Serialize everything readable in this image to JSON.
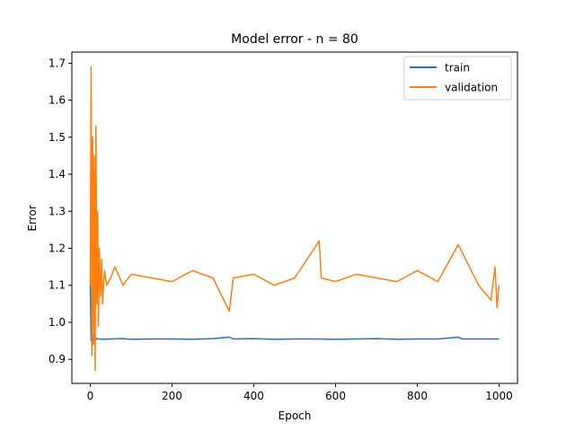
{
  "chart_data": {
    "type": "line",
    "title": "Model error - n = 80",
    "xlabel": "Epoch",
    "ylabel": "Error",
    "xlim": [
      -45,
      1045
    ],
    "ylim": [
      0.835,
      1.73
    ],
    "xticks": [
      0,
      200,
      400,
      600,
      800,
      1000
    ],
    "yticks": [
      0.9,
      1.0,
      1.1,
      1.2,
      1.3,
      1.4,
      1.5,
      1.6,
      1.7
    ],
    "ytick_labels": [
      "0.9",
      "1.0",
      "1.1",
      "1.2",
      "1.3",
      "1.4",
      "1.5",
      "1.6",
      "1.7"
    ],
    "grid": false,
    "legend_position": "top-right",
    "series": [
      {
        "name": "train",
        "color": "#1f77b4",
        "x": [
          0,
          2,
          4,
          6,
          8,
          10,
          12,
          15,
          20,
          30,
          50,
          80,
          100,
          150,
          200,
          250,
          300,
          340,
          350,
          400,
          450,
          500,
          550,
          600,
          650,
          700,
          750,
          800,
          850,
          900,
          910,
          950,
          1000
        ],
        "y": [
          1.1,
          0.95,
          0.96,
          0.94,
          0.97,
          0.955,
          0.95,
          0.956,
          0.955,
          0.954,
          0.955,
          0.956,
          0.954,
          0.955,
          0.955,
          0.954,
          0.956,
          0.96,
          0.955,
          0.956,
          0.954,
          0.955,
          0.955,
          0.954,
          0.955,
          0.956,
          0.954,
          0.955,
          0.955,
          0.96,
          0.955,
          0.955,
          0.955
        ]
      },
      {
        "name": "validation",
        "color": "#ff7f0e",
        "x": [
          0,
          2,
          4,
          6,
          8,
          10,
          12,
          14,
          16,
          18,
          20,
          22,
          25,
          28,
          30,
          35,
          40,
          50,
          60,
          80,
          100,
          150,
          200,
          250,
          300,
          340,
          350,
          400,
          450,
          500,
          560,
          565,
          600,
          650,
          700,
          750,
          800,
          850,
          900,
          950,
          980,
          990,
          995,
          1000
        ],
        "y": [
          1.1,
          1.69,
          0.91,
          1.5,
          0.94,
          1.45,
          0.87,
          1.53,
          1.05,
          1.3,
          0.99,
          1.2,
          1.07,
          1.17,
          1.05,
          1.14,
          1.1,
          1.12,
          1.15,
          1.1,
          1.13,
          1.12,
          1.11,
          1.14,
          1.12,
          1.03,
          1.12,
          1.13,
          1.1,
          1.12,
          1.22,
          1.12,
          1.11,
          1.13,
          1.12,
          1.11,
          1.14,
          1.11,
          1.21,
          1.1,
          1.06,
          1.15,
          1.04,
          1.1
        ]
      }
    ]
  }
}
